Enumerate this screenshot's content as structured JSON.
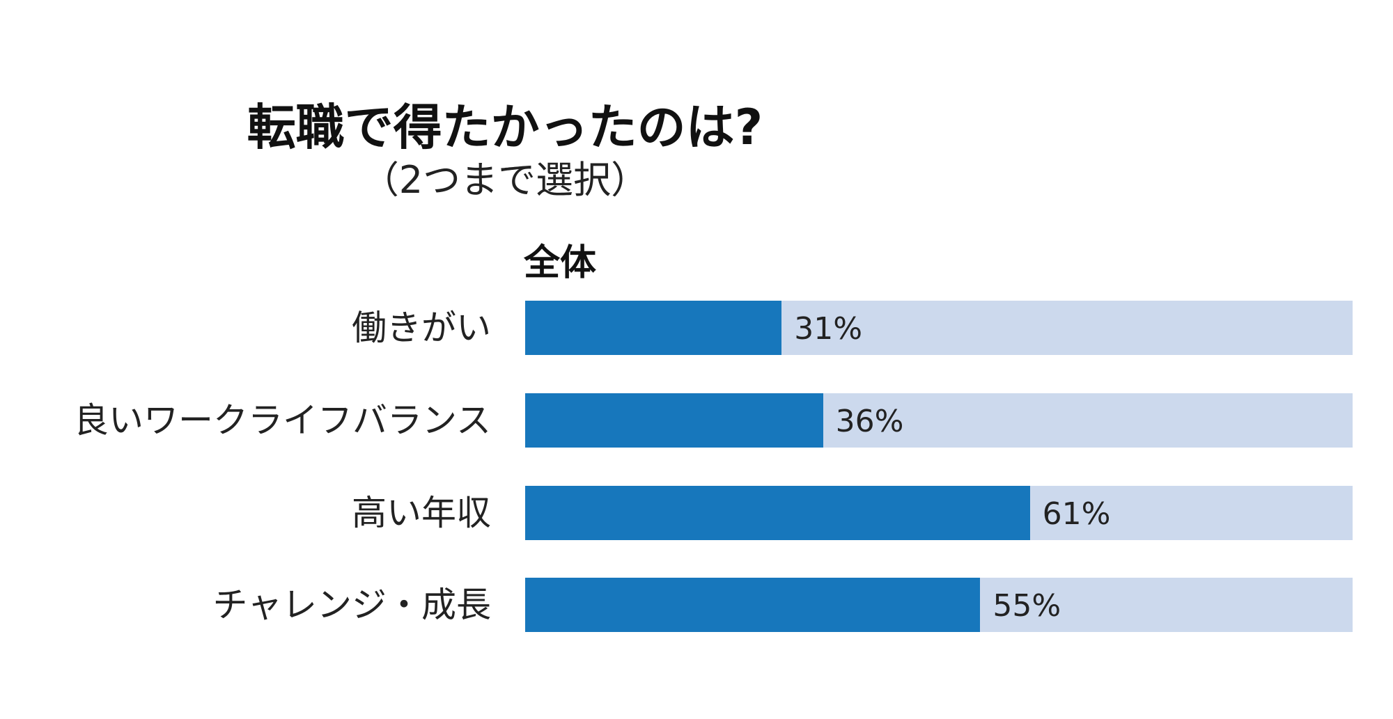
{
  "chart_data": {
    "type": "bar",
    "orientation": "horizontal",
    "title": "転職で得たかったのは?",
    "subtitle": "（2つまで選択）",
    "group_label": "全体",
    "categories": [
      "働きがい",
      "良いワークライフバランス",
      "高い年収",
      "チャレンジ・成長"
    ],
    "values": [
      31,
      36,
      61,
      55
    ],
    "value_labels": [
      "31%",
      "36%",
      "61%",
      "55%"
    ],
    "unit": "%",
    "xlim": [
      0,
      100
    ],
    "grid": false,
    "legend": "none"
  },
  "colors": {
    "bar_fill": "#1777bc",
    "bar_track": "#ccd9ed",
    "background": "#ffffff"
  }
}
